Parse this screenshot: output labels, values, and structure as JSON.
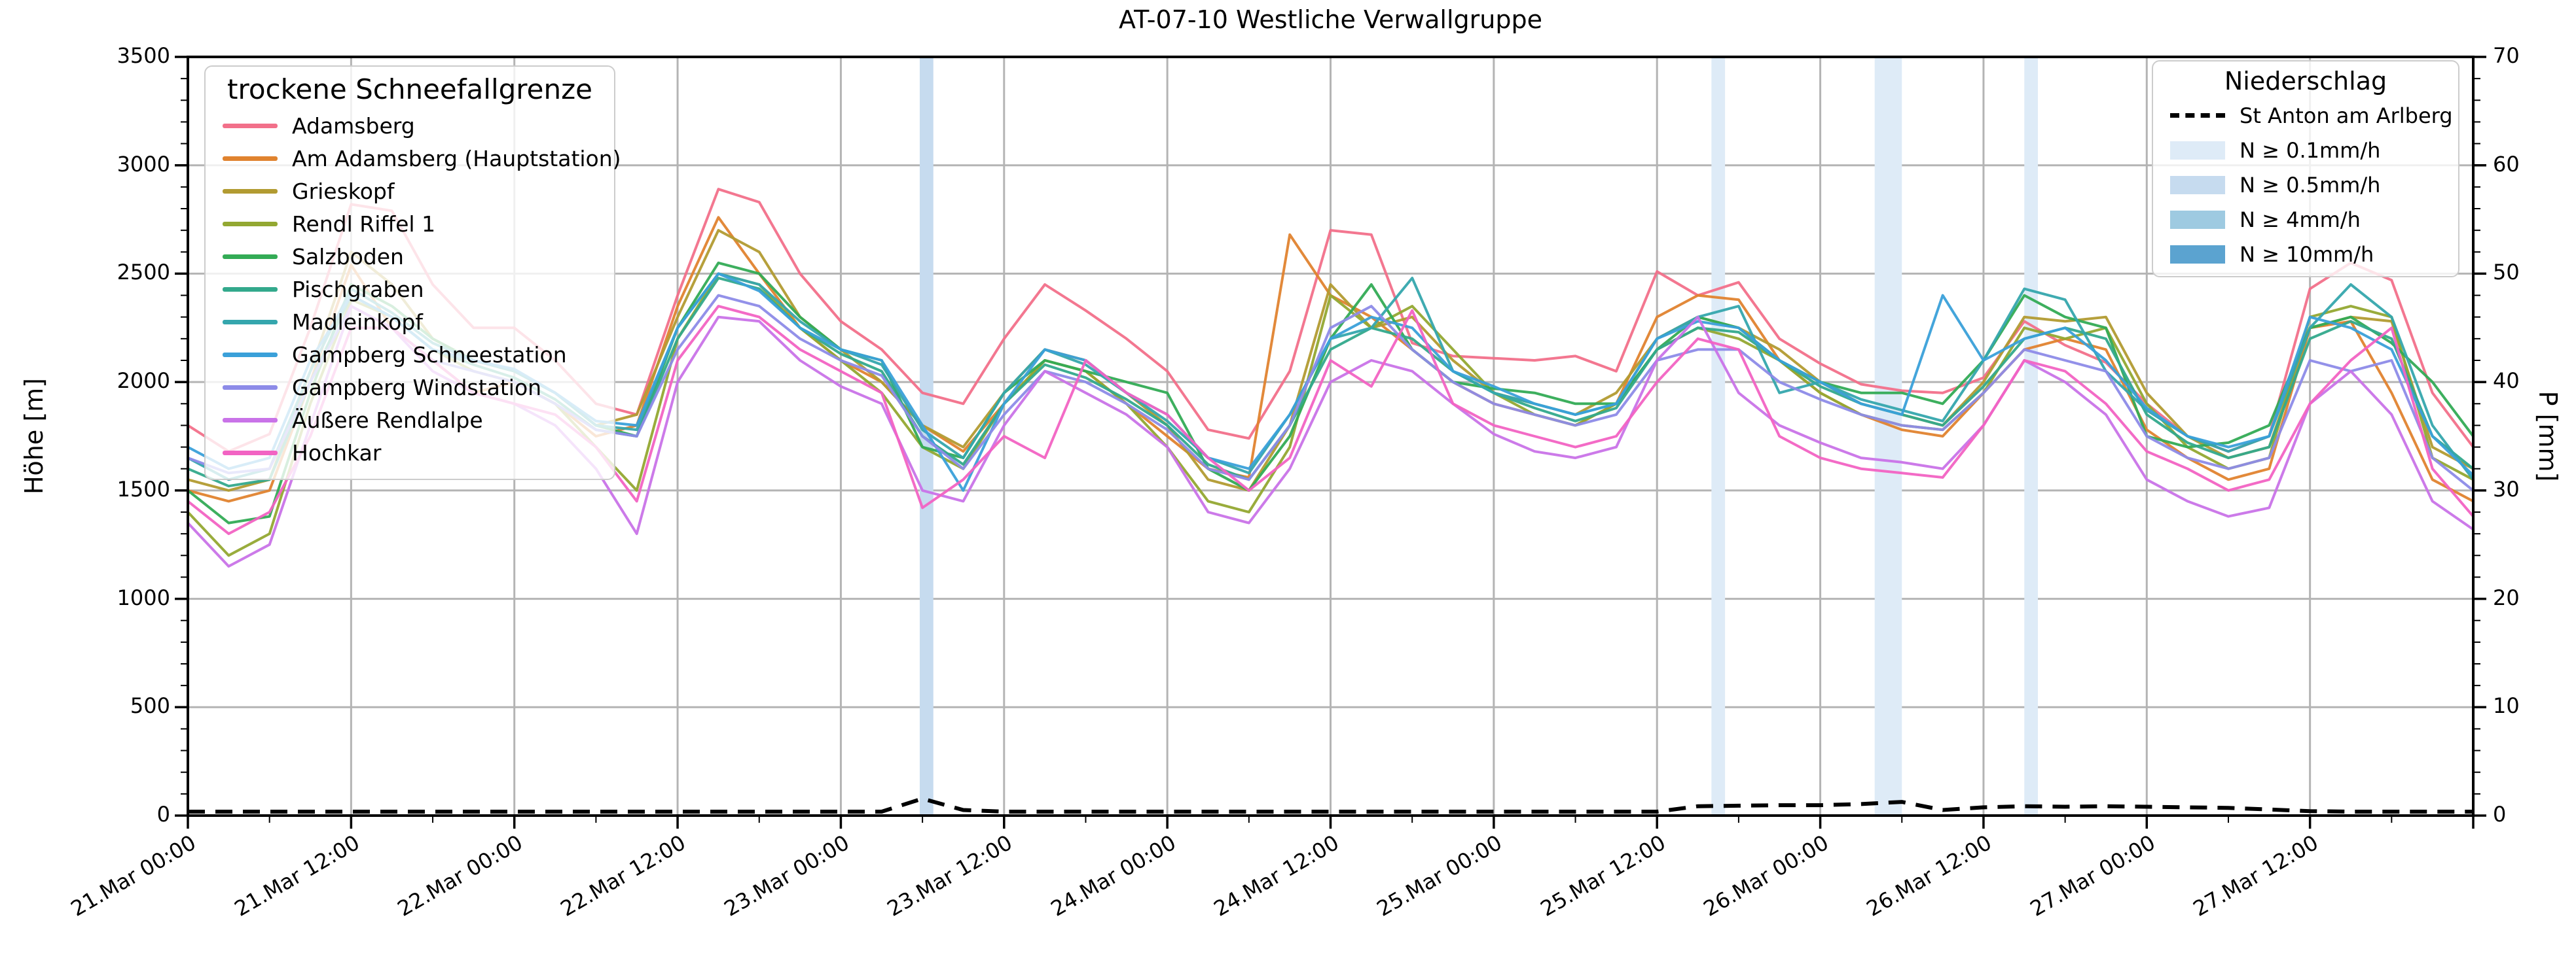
{
  "title": "AT-07-10 Westliche Verwallgruppe",
  "left_axis": {
    "label": "Höhe [m]",
    "tick_labels": [
      "0",
      "500",
      "1000",
      "1500",
      "2000",
      "2500",
      "3000",
      "3500"
    ],
    "tick_values": [
      0,
      500,
      1000,
      1500,
      2000,
      2500,
      3000,
      3500
    ],
    "minor_step": 100,
    "min": 0,
    "max": 3500
  },
  "right_axis": {
    "label": "P [mm]",
    "tick_labels": [
      "0",
      "10",
      "20",
      "30",
      "40",
      "50",
      "60",
      "70"
    ],
    "tick_values": [
      0,
      10,
      20,
      30,
      40,
      50,
      60,
      70
    ],
    "minor_step": 2,
    "min": 0,
    "max": 70
  },
  "x_axis": {
    "tick_labels": [
      "21.Mar 00:00",
      "21.Mar 12:00",
      "22.Mar 00:00",
      "22.Mar 12:00",
      "23.Mar 00:00",
      "23.Mar 12:00",
      "24.Mar 00:00",
      "24.Mar 12:00",
      "25.Mar 00:00",
      "25.Mar 12:00",
      "26.Mar 00:00",
      "26.Mar 12:00",
      "27.Mar 00:00",
      "27.Mar 12:00"
    ],
    "tick_hours": [
      0,
      12,
      24,
      36,
      48,
      60,
      72,
      84,
      96,
      108,
      120,
      132,
      144,
      156
    ],
    "minor_step_hours": 6,
    "min_hour": 0,
    "max_hour": 168
  },
  "legend_snowline": {
    "title": "trockene Schneefallgrenze"
  },
  "legend_precip": {
    "title": "Niederschlag",
    "station_label": "St Anton am Arlberg"
  },
  "chart_data": {
    "type": "line",
    "title": "AT-07-10 Westliche Verwallgruppe",
    "xlabel": "",
    "ylabel": "Höhe [m]",
    "ylabel_right": "P [mm]",
    "ylim": [
      0,
      3500
    ],
    "ylim_right": [
      0,
      70
    ],
    "xlim_hours": [
      0,
      168
    ],
    "x_start_label": "21.Mar 00:00",
    "grid": true,
    "x_hours": [
      0,
      3,
      6,
      9,
      12,
      15,
      18,
      21,
      24,
      27,
      30,
      33,
      36,
      39,
      42,
      45,
      48,
      51,
      54,
      57,
      60,
      63,
      66,
      69,
      72,
      75,
      78,
      81,
      84,
      87,
      90,
      93,
      96,
      99,
      102,
      105,
      108,
      111,
      114,
      117,
      120,
      123,
      126,
      129,
      132,
      135,
      138,
      141,
      144,
      147,
      150,
      153,
      156,
      159,
      162,
      165,
      168
    ],
    "series": [
      {
        "name": "Adamsberg",
        "color": "#f2708a",
        "values": [
          1800,
          1680,
          1760,
          2250,
          2820,
          2790,
          2450,
          2250,
          2250,
          2100,
          1900,
          1850,
          2400,
          2890,
          2830,
          2500,
          2280,
          2150,
          1950,
          1900,
          2200,
          2450,
          2330,
          2200,
          2050,
          1780,
          1740,
          2050,
          2700,
          2680,
          2180,
          2120,
          2110,
          2100,
          2120,
          2050,
          2510,
          2400,
          2460,
          2200,
          2085,
          1990,
          1960,
          1950,
          2020,
          2280,
          2170,
          2090,
          1900,
          1750,
          1680,
          1750,
          2430,
          2550,
          2470,
          1950,
          1700
        ]
      },
      {
        "name": "Am Adamsberg (Hauptstation)",
        "color": "#e0832f",
        "values": [
          1500,
          1450,
          1500,
          2000,
          2540,
          2250,
          2100,
          1950,
          2000,
          1900,
          1750,
          1800,
          2350,
          2760,
          2500,
          2250,
          2100,
          2000,
          1800,
          1680,
          1900,
          2100,
          2050,
          1900,
          1750,
          1600,
          1560,
          2680,
          2400,
          2300,
          2150,
          2000,
          1900,
          1850,
          1800,
          1900,
          2300,
          2400,
          2380,
          2100,
          1950,
          1850,
          1780,
          1750,
          1950,
          2150,
          2200,
          2150,
          1780,
          1650,
          1550,
          1600,
          2250,
          2280,
          1950,
          1550,
          1450
        ]
      },
      {
        "name": "Grieskopf",
        "color": "#b29b31",
        "values": [
          1550,
          1500,
          1550,
          2050,
          2600,
          2450,
          2200,
          2100,
          2050,
          1950,
          1800,
          1850,
          2300,
          2700,
          2600,
          2300,
          2150,
          2000,
          1800,
          1700,
          1950,
          2150,
          2100,
          1950,
          1800,
          1550,
          1500,
          1800,
          2450,
          2250,
          2300,
          2100,
          1950,
          1900,
          1850,
          1950,
          2200,
          2300,
          2250,
          2150,
          2000,
          1900,
          1850,
          1800,
          2000,
          2300,
          2280,
          2300,
          1950,
          1750,
          1650,
          1700,
          2250,
          2300,
          2280,
          1700,
          1600
        ]
      },
      {
        "name": "Rendl Riffel 1",
        "color": "#93a832",
        "values": [
          1400,
          1200,
          1300,
          1900,
          2380,
          2300,
          2150,
          2050,
          2000,
          1900,
          1700,
          1500,
          2200,
          2500,
          2450,
          2250,
          2100,
          1950,
          1700,
          1600,
          1900,
          2100,
          2050,
          1900,
          1700,
          1450,
          1400,
          1700,
          2400,
          2250,
          2350,
          2150,
          1950,
          1850,
          1800,
          1900,
          2150,
          2250,
          2200,
          2100,
          1950,
          1850,
          1800,
          1780,
          1950,
          2250,
          2200,
          2250,
          1900,
          1700,
          1600,
          1650,
          2300,
          2350,
          2300,
          1650,
          1550
        ]
      },
      {
        "name": "Salzboden",
        "color": "#33ab55",
        "values": [
          1500,
          1350,
          1380,
          1950,
          2450,
          2350,
          2200,
          2100,
          2050,
          1950,
          1800,
          1750,
          2250,
          2550,
          2500,
          2300,
          2150,
          2100,
          1700,
          1650,
          1950,
          2100,
          2050,
          2000,
          1950,
          1600,
          1500,
          1750,
          2200,
          2450,
          2150,
          2000,
          1970,
          1950,
          1900,
          1900,
          2150,
          2300,
          2250,
          2100,
          2000,
          1950,
          1950,
          1900,
          2100,
          2400,
          2300,
          2250,
          1750,
          1700,
          1720,
          1800,
          2250,
          2300,
          2180,
          2000,
          1750
        ]
      },
      {
        "name": "Pischgraben",
        "color": "#33a98c",
        "values": [
          1600,
          1520,
          1550,
          2000,
          2400,
          2300,
          2150,
          2080,
          2020,
          1920,
          1780,
          1750,
          2200,
          2480,
          2430,
          2250,
          2130,
          2050,
          1750,
          1620,
          1900,
          2080,
          2020,
          1920,
          1800,
          1620,
          1550,
          1800,
          2150,
          2250,
          2200,
          2050,
          1950,
          1880,
          1820,
          1880,
          2150,
          2250,
          2230,
          2100,
          1980,
          1900,
          1850,
          1800,
          1980,
          2200,
          2250,
          2200,
          1850,
          1720,
          1650,
          1700,
          2200,
          2280,
          2200,
          1750,
          1600
        ]
      },
      {
        "name": "Madleinkopf",
        "color": "#35a6ad",
        "values": [
          1650,
          1550,
          1600,
          2050,
          2430,
          2320,
          2180,
          2100,
          2050,
          1950,
          1800,
          1780,
          2250,
          2500,
          2450,
          2280,
          2150,
          2080,
          1780,
          1650,
          1950,
          2150,
          2080,
          1950,
          1820,
          1650,
          1580,
          1850,
          2200,
          2250,
          2480,
          2050,
          1950,
          1900,
          1850,
          1900,
          2200,
          2300,
          2350,
          1950,
          2000,
          1920,
          1870,
          1820,
          2100,
          2430,
          2380,
          2050,
          1870,
          1750,
          1680,
          1750,
          2250,
          2450,
          2300,
          1800,
          1550
        ]
      },
      {
        "name": "Gampberg Schneestation",
        "color": "#3aa0d9",
        "values": [
          1700,
          1600,
          1650,
          2100,
          2400,
          2300,
          2150,
          2100,
          2060,
          1950,
          1820,
          1800,
          2250,
          2500,
          2420,
          2250,
          2150,
          2100,
          1800,
          1500,
          1900,
          2150,
          2100,
          1950,
          1850,
          1650,
          1600,
          1850,
          2200,
          2300,
          2250,
          2050,
          1980,
          1900,
          1850,
          1900,
          2200,
          2280,
          2250,
          2100,
          2000,
          1900,
          1850,
          2400,
          2100,
          2200,
          2250,
          2100,
          1880,
          1750,
          1700,
          1750,
          2300,
          2250,
          2150,
          1750,
          1570
        ]
      },
      {
        "name": "Gampberg Windstation",
        "color": "#8d8be8",
        "values": [
          1650,
          1580,
          1600,
          2000,
          2350,
          2250,
          2100,
          2050,
          2000,
          1900,
          1780,
          1750,
          2150,
          2400,
          2350,
          2200,
          2100,
          2030,
          1750,
          1600,
          1850,
          2050,
          2000,
          1900,
          1780,
          1600,
          1550,
          1800,
          2250,
          2350,
          2150,
          2000,
          1900,
          1850,
          1800,
          1850,
          2100,
          2150,
          2150,
          2000,
          1920,
          1850,
          1800,
          1780,
          1950,
          2150,
          2100,
          2050,
          1750,
          1650,
          1600,
          1650,
          2100,
          2050,
          2100,
          1650,
          1500
        ]
      },
      {
        "name": "Äußere Rendlalpe",
        "color": "#c973e8",
        "values": [
          1350,
          1150,
          1250,
          1800,
          2350,
          2250,
          2050,
          1950,
          1900,
          1800,
          1600,
          1300,
          2000,
          2300,
          2280,
          2100,
          1980,
          1900,
          1500,
          1450,
          1800,
          2050,
          1950,
          1850,
          1700,
          1400,
          1350,
          1600,
          2000,
          2100,
          2050,
          1900,
          1760,
          1680,
          1650,
          1700,
          2100,
          2300,
          1950,
          1800,
          1720,
          1650,
          1630,
          1600,
          1800,
          2100,
          2000,
          1850,
          1550,
          1450,
          1380,
          1420,
          1900,
          2050,
          1850,
          1450,
          1320
        ]
      },
      {
        "name": "Hochkar",
        "color": "#f263c3",
        "values": [
          1450,
          1300,
          1400,
          1750,
          2250,
          2250,
          2100,
          1950,
          1900,
          1850,
          1700,
          1450,
          2100,
          2350,
          2300,
          2150,
          2050,
          1950,
          1420,
          1550,
          1750,
          1650,
          2100,
          1950,
          1850,
          1650,
          1500,
          1650,
          2100,
          1980,
          2330,
          1900,
          1800,
          1750,
          1700,
          1750,
          2000,
          2200,
          2150,
          1750,
          1650,
          1600,
          1580,
          1560,
          1800,
          2100,
          2050,
          1900,
          1680,
          1600,
          1500,
          1550,
          1900,
          2100,
          2250,
          1600,
          1380
        ]
      }
    ],
    "precipitation": {
      "name": "St Anton am Arlberg",
      "unit": "mm",
      "style": "dashed-black",
      "values": [
        0,
        0,
        0,
        0,
        0,
        0,
        0,
        0,
        0,
        0,
        0,
        0,
        0,
        0,
        0,
        0,
        0,
        0,
        1.2,
        0.15,
        0,
        0,
        0,
        0,
        0,
        0,
        0,
        0,
        0,
        0,
        0,
        0,
        0,
        0,
        0,
        0,
        0,
        0.5,
        0.55,
        0.6,
        0.6,
        0.7,
        0.9,
        0.15,
        0.4,
        0.5,
        0.45,
        0.5,
        0.45,
        0.4,
        0.35,
        0.2,
        0.05,
        0,
        0,
        0,
        0
      ]
    },
    "precip_levels": [
      {
        "label": "N ≥ 0.1mm/h",
        "color": "#deebf7"
      },
      {
        "label": "N ≥ 0.5mm/h",
        "color": "#c6dbef"
      },
      {
        "label": "N ≥ 4mm/h",
        "color": "#9ecae1"
      },
      {
        "label": "N ≥ 10mm/h",
        "color": "#5ba3d0"
      }
    ],
    "precip_bands": [
      {
        "start_hour": 53.8,
        "end_hour": 54.8,
        "level_index": 1
      },
      {
        "start_hour": 112.0,
        "end_hour": 113.0,
        "level_index": 0
      },
      {
        "start_hour": 124.0,
        "end_hour": 126.0,
        "level_index": 0
      },
      {
        "start_hour": 135.0,
        "end_hour": 136.0,
        "level_index": 0
      }
    ]
  }
}
